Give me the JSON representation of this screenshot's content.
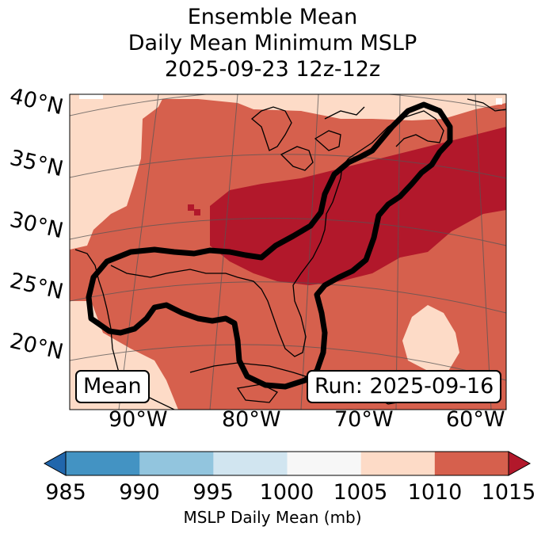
{
  "title": {
    "line1": "Ensemble Mean",
    "line2": "Daily Mean Minimum MSLP",
    "line3": "2025-09-23 12z-12z"
  },
  "map": {
    "mean_label": "Mean",
    "run_label": "Run: 2025-09-16",
    "lat_labels": [
      "40°N",
      "35°N",
      "30°N",
      "25°N",
      "20°N"
    ],
    "lon_labels": [
      "90°W",
      "80°W",
      "70°W",
      "60°W"
    ],
    "outline_color": "#000000",
    "land_color": "#d6604d",
    "high_color": "#b2182b",
    "low_color": "#fddbc7"
  },
  "colorbar": {
    "ticks": [
      "985",
      "990",
      "995",
      "1000",
      "1005",
      "1010",
      "1015"
    ],
    "colors": [
      "#2166ac",
      "#4393c3",
      "#92c5de",
      "#d1e5f0",
      "#f7f7f7",
      "#fddbc7",
      "#d6604d",
      "#b2182b"
    ],
    "label": "MSLP Daily Mean (mb)"
  }
}
